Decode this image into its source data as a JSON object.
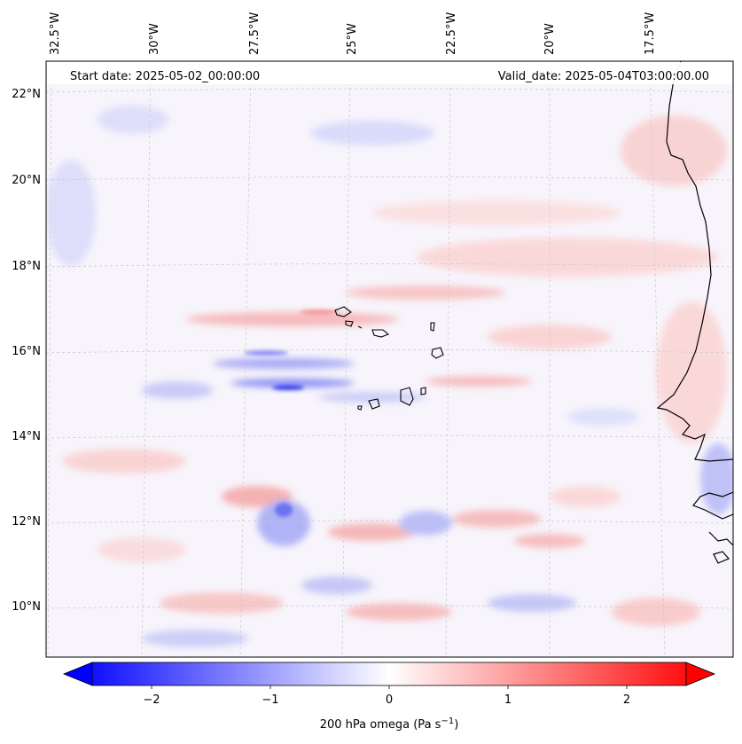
{
  "map": {
    "start_date": "Start date: 2025-05-02_00:00:00",
    "valid_date": "Valid_date: 2025-05-04T03:00:00.00",
    "lon_labels": [
      "32.5°W",
      "30°W",
      "27.5°W",
      "25°W",
      "22.5°W",
      "20°W",
      "17.5°W"
    ],
    "lat_labels": [
      "22°N",
      "20°N",
      "18°N",
      "16°N",
      "14°N",
      "12°N",
      "10°N"
    ],
    "colors": {
      "negative": "#0000ff",
      "positive": "#ff0000",
      "neutral": "#ffffff",
      "coastline": "#000000",
      "gridline": "#c8c8c8"
    }
  },
  "colorbar": {
    "label": "200 hPa omega (Pa s",
    "label_sup": "−1",
    "label_end": ")",
    "ticks": [
      "−2",
      "−1",
      "0",
      "1",
      "2"
    ],
    "tick_values": [
      -2,
      -1,
      0,
      1,
      2
    ],
    "range": [
      -2.5,
      2.5
    ],
    "cmap": "bwr"
  }
}
